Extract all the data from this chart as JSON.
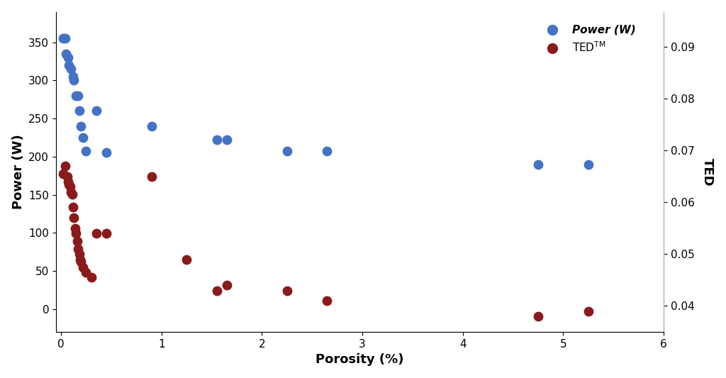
{
  "blue_x": [
    0.02,
    0.04,
    0.05,
    0.07,
    0.08,
    0.1,
    0.12,
    0.13,
    0.15,
    0.17,
    0.18,
    0.2,
    0.22,
    0.25,
    0.35,
    0.45,
    0.9,
    1.55,
    1.65,
    2.25,
    2.65,
    4.75,
    5.25
  ],
  "blue_y": [
    355,
    355,
    335,
    330,
    320,
    315,
    305,
    300,
    280,
    280,
    260,
    240,
    225,
    207,
    260,
    205,
    240,
    222,
    222,
    207,
    207,
    190,
    190
  ],
  "red_x": [
    0.02,
    0.04,
    0.06,
    0.07,
    0.08,
    0.09,
    0.1,
    0.11,
    0.12,
    0.13,
    0.14,
    0.15,
    0.16,
    0.17,
    0.18,
    0.19,
    0.2,
    0.22,
    0.25,
    0.3,
    0.35,
    0.45,
    0.9,
    1.25,
    1.55,
    1.65,
    2.25,
    2.65,
    4.75,
    5.25
  ],
  "red_y_ted": [
    0.0655,
    0.067,
    0.065,
    0.064,
    0.0635,
    0.063,
    0.062,
    0.0615,
    0.059,
    0.057,
    0.055,
    0.054,
    0.0525,
    0.051,
    0.05,
    0.049,
    0.0485,
    0.0475,
    0.0465,
    0.0455,
    0.054,
    0.054,
    0.065,
    0.049,
    0.043,
    0.044,
    0.043,
    0.041,
    0.038,
    0.039
  ],
  "blue_color": "#4472C4",
  "red_color": "#8B1A1A",
  "ylabel_left": "Power (W)",
  "ylabel_right": "TED",
  "xlabel": "Porosity (%)",
  "ylim_left": [
    -30,
    390
  ],
  "ylim_right": [
    0.035,
    0.0967
  ],
  "xlim": [
    -0.05,
    6
  ],
  "yticks_left": [
    0,
    50,
    100,
    150,
    200,
    250,
    300,
    350
  ],
  "yticks_right": [
    0.04,
    0.05,
    0.06,
    0.07,
    0.08,
    0.09
  ],
  "xticks": [
    0,
    1,
    2,
    3,
    4,
    5,
    6
  ],
  "legend_power": "Power (W)",
  "marker_size": 80,
  "bg_color": "#FFFFFF"
}
